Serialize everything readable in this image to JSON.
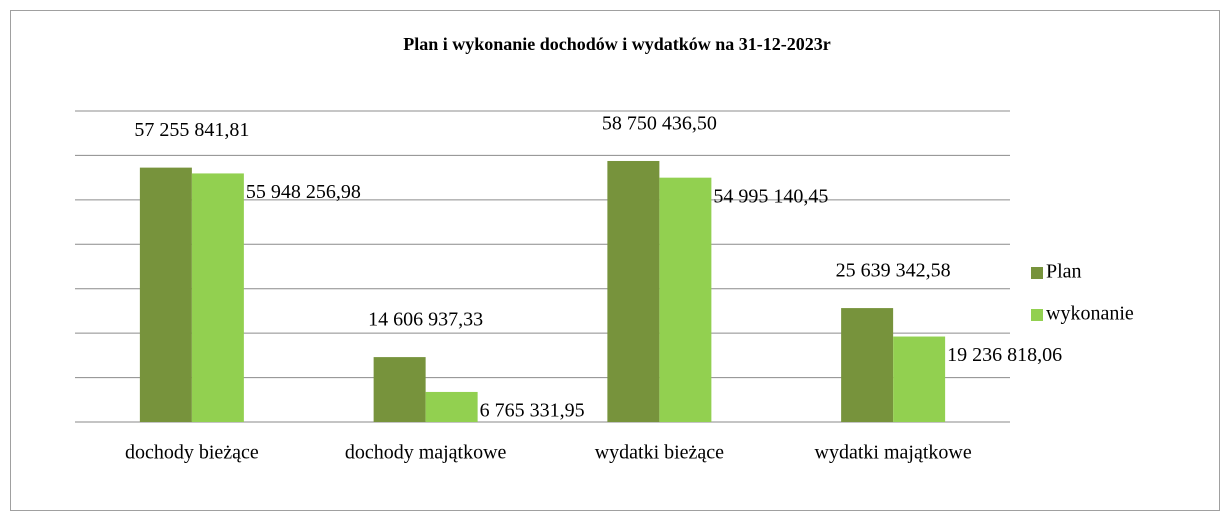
{
  "chart_data": {
    "type": "bar",
    "title": "Plan i wykonanie dochodów i wydatków na 31-12-2023r",
    "categories": [
      "dochody bieżące",
      "dochody majątkowe",
      "wydatki bieżące",
      "wydatki majątkowe"
    ],
    "series": [
      {
        "name": "Plan",
        "color": "#77933c",
        "values": [
          57255841.81,
          14606937.33,
          58750436.5,
          25639342.58
        ],
        "value_labels": [
          "57 255 841,81",
          "14 606 937,33",
          "58 750 436,50",
          "25 639 342,58"
        ]
      },
      {
        "name": "wykonanie",
        "color": "#92d050",
        "values": [
          55948256.98,
          6765331.95,
          54995140.45,
          19236818.06
        ],
        "value_labels": [
          "55 948 256,98",
          "6 765 331,95",
          "54 995 140,45",
          "19 236 818,06"
        ]
      }
    ],
    "ylim": [
      0,
      70000000
    ],
    "yticks": [
      0,
      10000000,
      20000000,
      30000000,
      40000000,
      50000000,
      60000000,
      70000000
    ],
    "grid": true,
    "legend": "right"
  }
}
